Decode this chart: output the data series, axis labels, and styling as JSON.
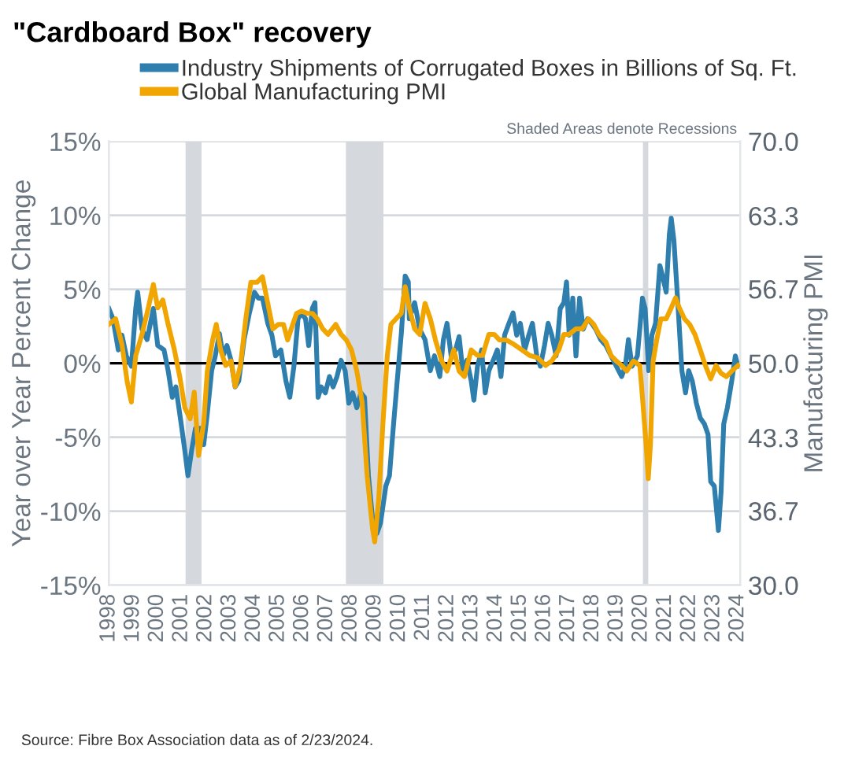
{
  "chart_data": {
    "type": "line",
    "title": "\"Cardboard Box\" recovery",
    "ylabel": "Year over Year Percent Change",
    "y2label": "Manufacturing PMI",
    "xlim": [
      1998,
      2024.1
    ],
    "xticks": [
      1998,
      1999,
      2000,
      2001,
      2002,
      2003,
      2004,
      2005,
      2006,
      2007,
      2008,
      2009,
      2010,
      2011,
      2012,
      2013,
      2014,
      2015,
      2016,
      2017,
      2018,
      2019,
      2020,
      2021,
      2022,
      2023,
      2024
    ],
    "ylim": [
      -15,
      15
    ],
    "yticks": [
      {
        "value": -15,
        "label": "-15%"
      },
      {
        "value": -10,
        "label": "-10%"
      },
      {
        "value": -5,
        "label": "-5%"
      },
      {
        "value": 0,
        "label": "0%"
      },
      {
        "value": 5,
        "label": "5%"
      },
      {
        "value": 10,
        "label": "10%"
      },
      {
        "value": 15,
        "label": "15%"
      }
    ],
    "y2lim": [
      30,
      70
    ],
    "y2ticks": [
      {
        "value": 30,
        "label": "30.0"
      },
      {
        "value": 36.7,
        "label": "36.7"
      },
      {
        "value": 43.3,
        "label": "43.3"
      },
      {
        "value": 50,
        "label": "50.0"
      },
      {
        "value": 56.7,
        "label": "56.7"
      },
      {
        "value": 63.3,
        "label": "63.3"
      },
      {
        "value": 70,
        "label": "70.0"
      }
    ],
    "grid": "y",
    "legend": "top",
    "marker": "none",
    "line_style": "solid",
    "ref_lines": [
      {
        "axis": "y",
        "value": 0,
        "label": null,
        "color": "#000000"
      }
    ],
    "bands": [
      {
        "axis": "x",
        "from": 2001.17,
        "to": 2001.83,
        "label": null,
        "color": "#d5d9de"
      },
      {
        "axis": "x",
        "from": 2007.8,
        "to": 2009.35,
        "label": null,
        "color": "#d5d9de"
      },
      {
        "axis": "x",
        "from": 2020.08,
        "to": 2020.3,
        "label": null,
        "color": "#d5d9de"
      }
    ],
    "annotations": [
      "Shaded Areas denote Recessions",
      "Source: Fibre Box Association data as of 2/23/2024."
    ],
    "series": [
      {
        "name": "Industry Shipments of Corrugated Boxes in Billions of Sq. Ft.",
        "color": "#2e7eae",
        "axis": "y",
        "x": [
          1998.0,
          1998.17,
          1998.39,
          1998.54,
          1998.72,
          1998.93,
          1999.11,
          1999.19,
          1999.37,
          1999.58,
          1999.84,
          2000.02,
          2000.28,
          2000.45,
          2000.62,
          2000.77,
          2000.99,
          2001.14,
          2001.27,
          2001.42,
          2001.58,
          2001.75,
          2001.92,
          2002.07,
          2002.25,
          2002.4,
          2002.57,
          2002.72,
          2002.88,
          2003.05,
          2003.22,
          2003.37,
          2003.59,
          2003.81,
          2004.02,
          2004.18,
          2004.35,
          2004.57,
          2004.74,
          2004.89,
          2005.11,
          2005.32,
          2005.48,
          2005.65,
          2005.82,
          2005.97,
          2006.13,
          2006.26,
          2006.41,
          2006.52,
          2006.65,
          2006.78,
          2006.95,
          2007.12,
          2007.27,
          2007.43,
          2007.6,
          2007.77,
          2007.92,
          2008.08,
          2008.25,
          2008.42,
          2008.57,
          2008.73,
          2008.9,
          2009.08,
          2009.23,
          2009.45,
          2009.6,
          2009.77,
          2009.92,
          2010.09,
          2010.25,
          2010.38,
          2010.42,
          2010.64,
          2010.85,
          2011.07,
          2011.29,
          2011.46,
          2011.68,
          2011.83,
          2011.98,
          2012.15,
          2012.33,
          2012.48,
          2012.63,
          2012.8,
          2012.98,
          2013.09,
          2013.24,
          2013.41,
          2013.56,
          2013.71,
          2013.89,
          2014.06,
          2014.21,
          2014.36,
          2014.54,
          2014.71,
          2014.86,
          2015.01,
          2015.19,
          2015.36,
          2015.51,
          2015.69,
          2015.84,
          2016.01,
          2016.16,
          2016.31,
          2016.49,
          2016.66,
          2016.81,
          2016.92,
          2017.03,
          2017.18,
          2017.31,
          2017.46,
          2017.61,
          2017.79,
          2017.96,
          2018.13,
          2018.33,
          2018.55,
          2018.76,
          2018.98,
          2019.2,
          2019.35,
          2019.48,
          2019.63,
          2019.85,
          2020.06,
          2020.17,
          2020.32,
          2020.45,
          2020.6,
          2020.78,
          2020.89,
          2021.04,
          2021.17,
          2021.25,
          2021.36,
          2021.51,
          2021.69,
          2021.84,
          2021.97,
          2022.12,
          2022.29,
          2022.45,
          2022.62,
          2022.77,
          2022.88,
          2023.03,
          2023.2,
          2023.31,
          2023.42,
          2023.57,
          2023.75,
          2023.9,
          2024.01
        ],
        "values": [
          3.7,
          3.0,
          0.9,
          1.9,
          0.5,
          -0.2,
          3.7,
          4.8,
          2.3,
          1.6,
          3.7,
          1.2,
          0.9,
          -0.5,
          -2.3,
          -1.6,
          -4.1,
          -5.9,
          -7.6,
          -5.9,
          -4.4,
          -4.4,
          -5.5,
          -3.4,
          -0.5,
          0.5,
          2.0,
          0.5,
          1.2,
          0.2,
          -1.6,
          -1.2,
          1.6,
          3.4,
          4.8,
          4.4,
          4.4,
          2.7,
          1.9,
          0.5,
          0.9,
          -1.2,
          -2.3,
          -0.2,
          3.0,
          3.4,
          3.0,
          1.2,
          3.7,
          4.1,
          -2.3,
          -1.6,
          -2.0,
          -0.9,
          -1.6,
          -0.9,
          0.2,
          -0.5,
          -2.7,
          -2.0,
          -3.0,
          -2.0,
          -2.3,
          -7.6,
          -10.5,
          -11.5,
          -10.8,
          -8.3,
          -7.6,
          -4.1,
          -1.2,
          2.0,
          5.9,
          5.5,
          3.0,
          4.1,
          2.3,
          1.6,
          -0.5,
          0.5,
          -0.9,
          1.6,
          2.7,
          0.5,
          0.9,
          1.8,
          -0.5,
          0.2,
          -1.2,
          -2.5,
          -0.2,
          0.9,
          -2.0,
          -0.5,
          0.2,
          0.9,
          -0.9,
          1.9,
          2.7,
          3.4,
          1.9,
          2.7,
          0.9,
          1.9,
          2.7,
          0.5,
          -0.2,
          1.2,
          2.7,
          1.9,
          0.5,
          3.7,
          4.1,
          5.5,
          1.9,
          4.4,
          0.5,
          4.4,
          2.3,
          3.0,
          2.7,
          2.3,
          1.6,
          1.2,
          0.5,
          -0.2,
          -0.9,
          -0.2,
          1.6,
          -0.2,
          0.5,
          4.4,
          3.7,
          -0.5,
          1.9,
          2.7,
          6.6,
          5.9,
          4.8,
          8.7,
          9.8,
          8.3,
          4.4,
          -0.5,
          -2.0,
          -0.5,
          -1.2,
          -2.7,
          -3.7,
          -4.1,
          -4.8,
          -8.0,
          -8.3,
          -11.3,
          -8.7,
          -4.1,
          -3.0,
          -1.2,
          0.5,
          -0.2
        ]
      },
      {
        "name": "Global Manufacturing PMI",
        "color": "#f0a500",
        "axis": "y2",
        "x": [
          1998.0,
          1998.28,
          1998.54,
          1998.76,
          1998.93,
          1999.11,
          1999.37,
          1999.63,
          1999.84,
          2000.02,
          2000.23,
          2000.45,
          2000.71,
          2000.93,
          2001.14,
          2001.36,
          2001.53,
          2001.71,
          2001.92,
          2002.07,
          2002.29,
          2002.44,
          2002.62,
          2002.83,
          2003.05,
          2003.22,
          2003.44,
          2003.66,
          2003.87,
          2004.13,
          2004.35,
          2004.57,
          2004.78,
          2005.0,
          2005.22,
          2005.39,
          2005.54,
          2005.76,
          2005.97,
          2006.19,
          2006.41,
          2006.62,
          2006.84,
          2007.06,
          2007.38,
          2007.6,
          2007.82,
          2008.03,
          2008.25,
          2008.47,
          2008.68,
          2008.9,
          2008.99,
          2009.16,
          2009.33,
          2009.51,
          2009.66,
          2009.87,
          2010.09,
          2010.25,
          2010.42,
          2010.64,
          2010.85,
          2011.07,
          2011.29,
          2011.5,
          2011.76,
          2011.98,
          2012.26,
          2012.48,
          2012.7,
          2012.98,
          2013.24,
          2013.45,
          2013.71,
          2013.93,
          2014.15,
          2014.43,
          2014.75,
          2015.08,
          2015.4,
          2015.73,
          2016.05,
          2016.31,
          2016.6,
          2016.81,
          2017.03,
          2017.31,
          2017.57,
          2017.83,
          2018.05,
          2018.26,
          2018.55,
          2018.76,
          2018.98,
          2019.2,
          2019.41,
          2019.69,
          2019.95,
          2020.06,
          2020.21,
          2020.3,
          2020.39,
          2020.5,
          2020.65,
          2020.82,
          2021.04,
          2021.25,
          2021.43,
          2021.58,
          2021.8,
          2022.01,
          2022.23,
          2022.45,
          2022.66,
          2022.88,
          2023.1,
          2023.31,
          2023.53,
          2023.75,
          2024.01
        ],
        "values": [
          53.5,
          54.0,
          51.7,
          48.3,
          46.5,
          50.7,
          52.6,
          55.0,
          57.1,
          55.0,
          55.7,
          53.5,
          51.2,
          48.8,
          46.0,
          45.0,
          47.4,
          41.7,
          44.6,
          49.3,
          52.1,
          53.5,
          51.2,
          49.8,
          50.2,
          47.9,
          49.8,
          54.0,
          57.3,
          57.3,
          57.8,
          55.4,
          53.1,
          53.5,
          53.5,
          52.1,
          53.1,
          54.5,
          54.7,
          54.5,
          54.5,
          54.0,
          53.1,
          52.6,
          53.5,
          52.6,
          52.1,
          51.2,
          49.3,
          46.5,
          39.8,
          35.1,
          33.9,
          37.9,
          44.6,
          50.7,
          53.5,
          54.0,
          54.5,
          56.9,
          55.0,
          53.1,
          52.6,
          55.4,
          54.0,
          52.1,
          50.2,
          49.3,
          51.2,
          49.3,
          48.8,
          51.2,
          50.7,
          50.7,
          52.6,
          52.6,
          52.1,
          52.1,
          51.7,
          51.2,
          50.7,
          50.5,
          49.8,
          50.2,
          51.2,
          52.6,
          52.6,
          53.1,
          53.1,
          54.0,
          53.5,
          52.6,
          51.9,
          50.7,
          50.2,
          49.8,
          49.3,
          50.2,
          49.8,
          46.9,
          42.7,
          39.6,
          42.7,
          50.2,
          52.1,
          54.0,
          54.0,
          55.0,
          55.9,
          55.0,
          54.0,
          53.5,
          52.6,
          51.2,
          49.8,
          48.6,
          49.8,
          49.1,
          48.8,
          49.3,
          49.8
        ]
      }
    ]
  }
}
